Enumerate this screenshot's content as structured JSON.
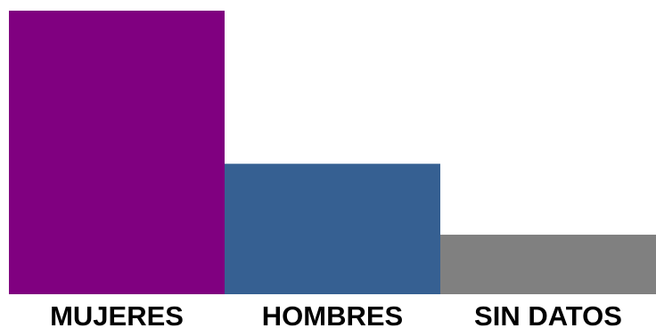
{
  "chart_data": {
    "type": "bar",
    "categories": [
      "MUJERES",
      "HOMBRES",
      "SIN DATOS"
    ],
    "values": [
      100,
      46,
      21
    ],
    "colors": [
      "#800080",
      "#366092",
      "#808080"
    ],
    "ylim": [
      0,
      100
    ],
    "grid": false,
    "title": "",
    "xlabel": "",
    "ylabel": ""
  }
}
